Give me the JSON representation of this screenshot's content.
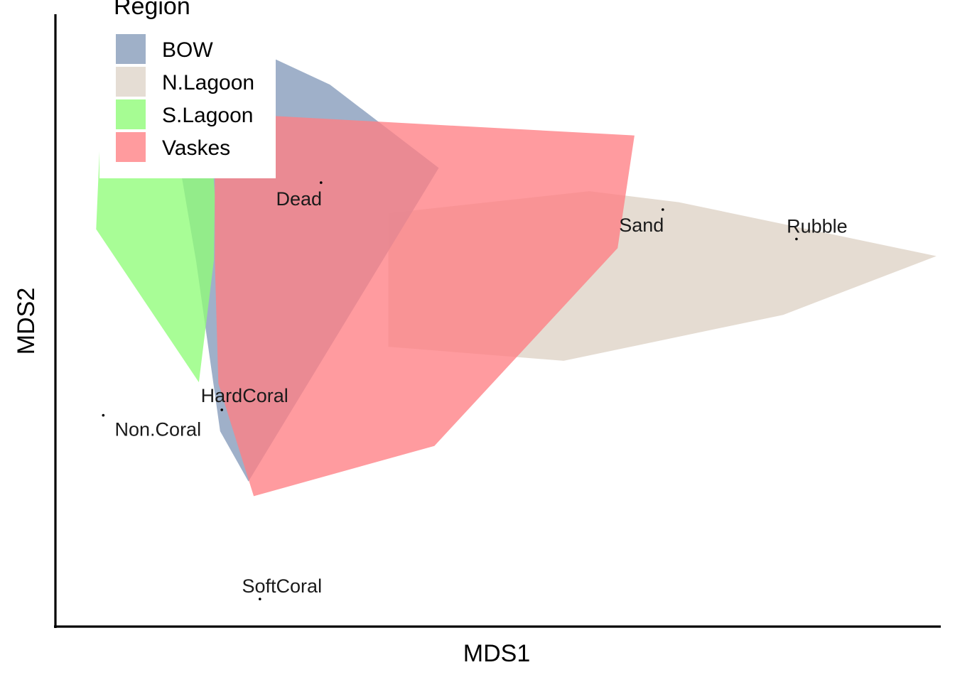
{
  "chart_data": {
    "type": "scatter",
    "subtype": "nmds-ordination-with-convex-hulls",
    "title": "",
    "xlabel": "MDS1",
    "ylabel": "MDS2",
    "xlim": [
      0,
      1000
    ],
    "ylim": [
      0,
      1000
    ],
    "grid": false,
    "axis_ticks": false,
    "legend": {
      "title": "Region",
      "position": "top-left",
      "entries": [
        {
          "name": "BOW",
          "color": "#9fb0c8"
        },
        {
          "name": "N.Lagoon",
          "color": "#e5ddd4"
        },
        {
          "name": "S.Lagoon",
          "color": "#a6fc93"
        },
        {
          "name": "Vaskes",
          "color": "#ff9b9e"
        }
      ]
    },
    "hulls": [
      {
        "name": "N.Lagoon",
        "color": "#e1d6cb",
        "opacity": 0.86,
        "points": [
          [
            376,
            675
          ],
          [
            603,
            711
          ],
          [
            704,
            693
          ],
          [
            995,
            605
          ],
          [
            822,
            509
          ],
          [
            574,
            434
          ],
          [
            376,
            457
          ]
        ]
      },
      {
        "name": "BOW",
        "color": "#8fa3c0",
        "opacity": 0.86,
        "points": [
          [
            249,
            926
          ],
          [
            310,
            885
          ],
          [
            433,
            749
          ],
          [
            218,
            237
          ],
          [
            186,
            319
          ],
          [
            159,
            596
          ],
          [
            133,
            817
          ],
          [
            203,
            837
          ]
        ]
      },
      {
        "name": "S.Lagoon",
        "color": "#8ffc78",
        "opacity": 0.78,
        "points": [
          [
            51,
            816
          ],
          [
            175,
            817
          ],
          [
            180,
            704
          ],
          [
            179,
            598
          ],
          [
            162,
            399
          ],
          [
            46,
            649
          ]
        ]
      },
      {
        "name": "Vaskes",
        "color": "#ff7f84",
        "opacity": 0.78,
        "points": [
          [
            180,
            839
          ],
          [
            654,
            802
          ],
          [
            635,
            618
          ],
          [
            428,
            295
          ],
          [
            224,
            213
          ],
          [
            184,
            397
          ],
          [
            180,
            599
          ]
        ]
      }
    ],
    "labeled_points": [
      {
        "label": "Dead",
        "x": 300,
        "y": 725
      },
      {
        "label": "Sand",
        "x": 686,
        "y": 681
      },
      {
        "label": "Rubble",
        "x": 837,
        "y": 633
      },
      {
        "label": "HardCoral",
        "x": 188,
        "y": 354
      },
      {
        "label": "Non.Coral",
        "x": 54,
        "y": 345
      },
      {
        "label": "SoftCoral",
        "x": 231,
        "y": 45
      }
    ]
  }
}
